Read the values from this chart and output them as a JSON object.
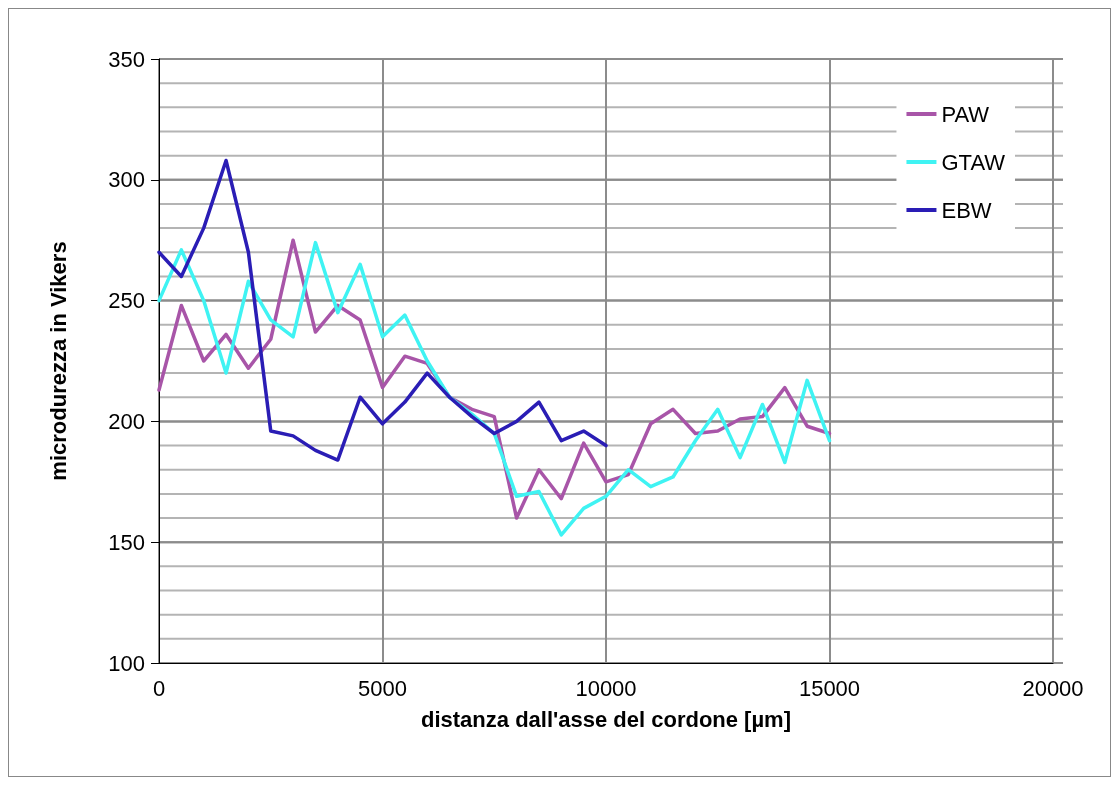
{
  "chart_data": {
    "type": "line",
    "xlabel": "distanza dall'asse del cordone [µm]",
    "ylabel": "microdurezza in Vikers",
    "xlim": [
      0,
      20000
    ],
    "xticks": [
      0,
      5000,
      10000,
      15000,
      20000
    ],
    "ylim": [
      100,
      350
    ],
    "yticks": [
      100,
      150,
      200,
      250,
      300,
      350
    ],
    "grid": true,
    "legend": "top right",
    "marker": "none",
    "line_style": "solid",
    "series": [
      {
        "name": "PAW",
        "color": "#a855a8",
        "x": [
          0,
          500,
          1000,
          1500,
          2000,
          2500,
          3000,
          3500,
          4000,
          4500,
          5000,
          5500,
          6000,
          6500,
          7000,
          7500,
          8000,
          8500,
          9000,
          9500,
          10000,
          10500,
          11000,
          11500,
          12000,
          12500,
          13000,
          13500,
          14000,
          14500,
          15000
        ],
        "values": [
          213,
          248,
          225,
          236,
          222,
          234,
          275,
          237,
          248,
          242,
          214,
          227,
          224,
          210,
          205,
          202,
          160,
          180,
          168,
          191,
          175,
          178,
          199,
          205,
          195,
          196,
          201,
          202,
          214,
          198,
          195
        ]
      },
      {
        "name": "GTAW",
        "color": "#3ff3f3",
        "x": [
          0,
          500,
          1000,
          1500,
          2000,
          2500,
          3000,
          3500,
          4000,
          4500,
          5000,
          5500,
          6000,
          6500,
          7000,
          7500,
          8000,
          8500,
          9000,
          9500,
          10000,
          10500,
          11000,
          11500,
          12000,
          12500,
          13000,
          13500,
          14000,
          14500,
          15000
        ],
        "values": [
          250,
          271,
          250,
          220,
          258,
          242,
          235,
          274,
          245,
          265,
          235,
          244,
          225,
          210,
          203,
          195,
          169,
          171,
          153,
          164,
          169,
          180,
          173,
          177,
          192,
          205,
          185,
          207,
          183,
          217,
          192
        ]
      },
      {
        "name": "EBW",
        "color": "#2a1db5",
        "x": [
          0,
          500,
          1000,
          1500,
          2000,
          2500,
          3000,
          3500,
          4000,
          4500,
          5000,
          5500,
          6000,
          6500,
          7000,
          7500,
          8000,
          8500,
          9000,
          9500,
          10000
        ],
        "values": [
          270,
          260,
          280,
          308,
          270,
          196,
          194,
          188,
          184,
          210,
          199,
          208,
          220,
          210,
          202,
          195,
          200,
          208,
          192,
          196,
          190
        ]
      }
    ]
  }
}
